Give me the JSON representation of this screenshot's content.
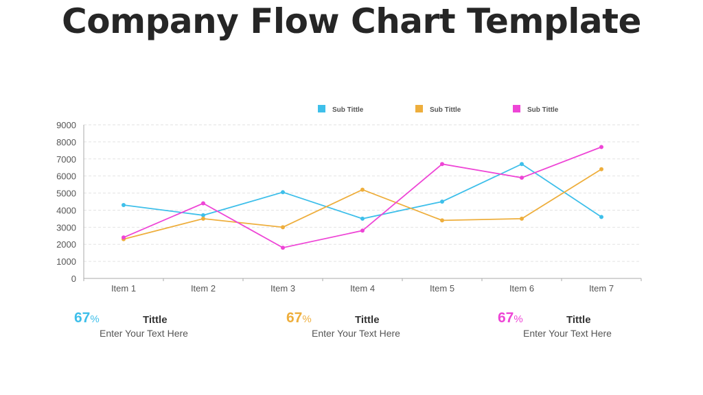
{
  "title": "Company Flow Chart Template",
  "chart_data": {
    "type": "line",
    "categories": [
      "Item 1",
      "Item 2",
      "Item 3",
      "Item 4",
      "Item 5",
      "Item 6",
      "Item 7"
    ],
    "ylim": [
      0,
      9000
    ],
    "yticks": [
      0,
      1000,
      2000,
      3000,
      4000,
      5000,
      6000,
      7000,
      8000,
      9000
    ],
    "grid": true,
    "legend_position": "top-right",
    "series": [
      {
        "name": "Sub Tittle",
        "color": "#3EBFEA",
        "values": [
          4300,
          3700,
          5050,
          3500,
          4500,
          6700,
          3600
        ]
      },
      {
        "name": "Sub Tittle",
        "color": "#EEAE3C",
        "values": [
          2300,
          3500,
          3000,
          5200,
          3400,
          3500,
          6400
        ]
      },
      {
        "name": "Sub Tittle",
        "color": "#EE45D6",
        "values": [
          2400,
          4400,
          1800,
          2800,
          6700,
          5900,
          7700
        ]
      }
    ]
  },
  "stats": [
    {
      "value": "67",
      "unit": "%",
      "title": "Tittle",
      "text": "Enter Your Text Here",
      "color": "#3EBFEA"
    },
    {
      "value": "67",
      "unit": "%",
      "title": "Tittle",
      "text": "Enter Your Text Here",
      "color": "#EEAE3C"
    },
    {
      "value": "67",
      "unit": "%",
      "title": "Tittle",
      "text": "Enter Your Text Here",
      "color": "#EE45D6"
    }
  ]
}
